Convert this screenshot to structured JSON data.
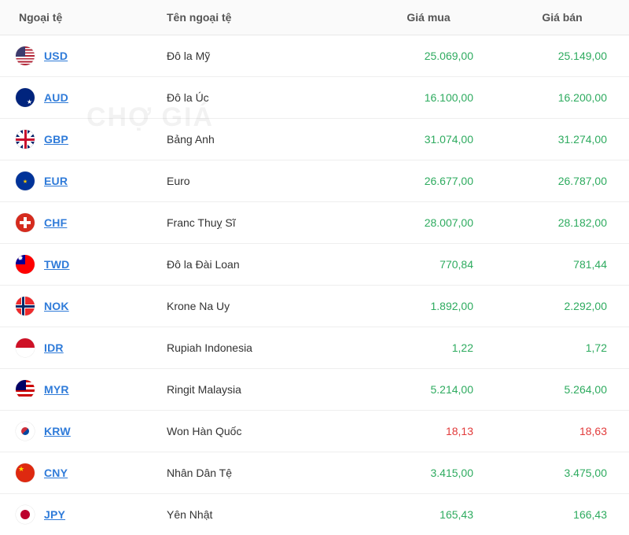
{
  "headers": {
    "currency": "Ngoại tệ",
    "name": "Tên ngoại tệ",
    "buy": "Giá mua",
    "sell": "Giá bán"
  },
  "colors": {
    "up": "#2eab5f",
    "down": "#e23b3b",
    "link": "#2f7bd9",
    "border": "#eeeeee"
  },
  "watermark": "CHỢ GIÁ",
  "rows": [
    {
      "code": "USD",
      "flag": "flag-usd",
      "name": "Đô la Mỹ",
      "buy": "25.069,00",
      "sell": "25.149,00",
      "dir": "up"
    },
    {
      "code": "AUD",
      "flag": "flag-aud",
      "name": "Đô la Úc",
      "buy": "16.100,00",
      "sell": "16.200,00",
      "dir": "up"
    },
    {
      "code": "GBP",
      "flag": "flag-gbp",
      "name": "Bảng Anh",
      "buy": "31.074,00",
      "sell": "31.274,00",
      "dir": "up"
    },
    {
      "code": "EUR",
      "flag": "flag-eur",
      "name": "Euro",
      "buy": "26.677,00",
      "sell": "26.787,00",
      "dir": "up"
    },
    {
      "code": "CHF",
      "flag": "flag-chf",
      "name": "Franc Thuỵ Sĩ",
      "buy": "28.007,00",
      "sell": "28.182,00",
      "dir": "up"
    },
    {
      "code": "TWD",
      "flag": "flag-twd",
      "name": "Đô la Đài Loan",
      "buy": "770,84",
      "sell": "781,44",
      "dir": "up"
    },
    {
      "code": "NOK",
      "flag": "flag-nok",
      "name": "Krone Na Uy",
      "buy": "1.892,00",
      "sell": "2.292,00",
      "dir": "up"
    },
    {
      "code": "IDR",
      "flag": "flag-idr",
      "name": "Rupiah Indonesia",
      "buy": "1,22",
      "sell": "1,72",
      "dir": "up"
    },
    {
      "code": "MYR",
      "flag": "flag-myr",
      "name": "Ringit Malaysia",
      "buy": "5.214,00",
      "sell": "5.264,00",
      "dir": "up"
    },
    {
      "code": "KRW",
      "flag": "flag-krw",
      "name": "Won Hàn Quốc",
      "buy": "18,13",
      "sell": "18,63",
      "dir": "down"
    },
    {
      "code": "CNY",
      "flag": "flag-cny",
      "name": "Nhân Dân Tệ",
      "buy": "3.415,00",
      "sell": "3.475,00",
      "dir": "up"
    },
    {
      "code": "JPY",
      "flag": "flag-jpy",
      "name": "Yên Nhật",
      "buy": "165,43",
      "sell": "166,43",
      "dir": "up"
    }
  ]
}
